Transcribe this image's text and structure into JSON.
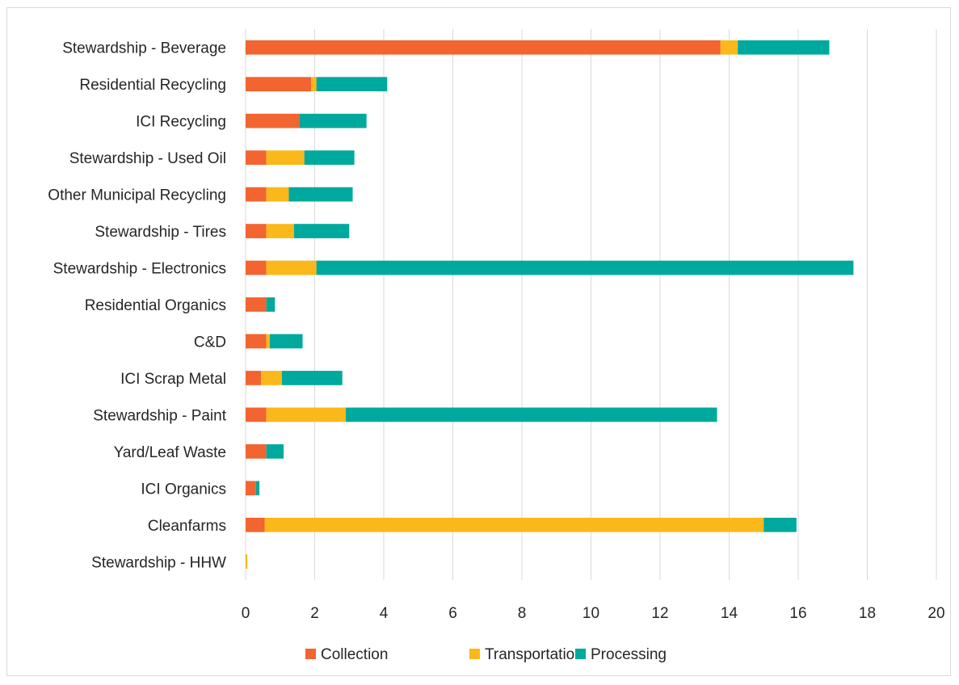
{
  "chart_data": {
    "type": "bar",
    "orientation": "horizontal",
    "stacked": true,
    "title": "",
    "xlabel": "",
    "ylabel": "",
    "xlim": [
      0,
      20
    ],
    "x_ticks": [
      0,
      2,
      4,
      6,
      8,
      10,
      12,
      14,
      16,
      18,
      20
    ],
    "grid": "vertical",
    "legend_position": "bottom",
    "categories": [
      "Stewardship - Beverage",
      "Residential Recycling",
      "ICI Recycling",
      "Stewardship - Used Oil",
      "Other Municipal Recycling",
      "Stewardship - Tires",
      "Stewardship - Electronics",
      "Residential Organics",
      "C&D",
      "ICI Scrap Metal",
      "Stewardship - Paint",
      "Yard/Leaf Waste",
      "ICI Organics",
      "Cleanfarms",
      "Stewardship - HHW"
    ],
    "series": [
      {
        "name": "Collection",
        "color": "#f26430",
        "values": [
          13.75,
          1.9,
          1.55,
          0.6,
          0.6,
          0.6,
          0.6,
          0.6,
          0.6,
          0.45,
          0.6,
          0.6,
          0.3,
          0.55,
          0.0
        ]
      },
      {
        "name": "Transportation",
        "color": "#fbb81a",
        "values": [
          0.5,
          0.15,
          0.0,
          1.1,
          0.65,
          0.8,
          1.45,
          0.0,
          0.1,
          0.6,
          2.3,
          0.0,
          0.0,
          14.45,
          0.05
        ]
      },
      {
        "name": "Processing",
        "color": "#00a99d",
        "values": [
          2.65,
          2.05,
          1.95,
          1.45,
          1.85,
          1.6,
          15.55,
          0.25,
          0.95,
          1.75,
          10.75,
          0.5,
          0.1,
          0.95,
          0.0
        ]
      }
    ]
  }
}
